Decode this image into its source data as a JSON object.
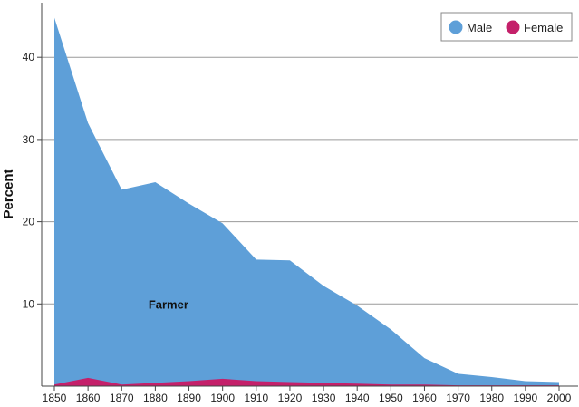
{
  "chart_data": {
    "type": "area",
    "stacked": false,
    "title": "",
    "xlabel": "",
    "ylabel": "Percent",
    "x": [
      1850,
      1860,
      1870,
      1880,
      1890,
      1900,
      1910,
      1920,
      1930,
      1940,
      1950,
      1960,
      1970,
      1980,
      1990,
      2000
    ],
    "xlim": [
      1850,
      2000
    ],
    "ylim": [
      0,
      46
    ],
    "yticks": [
      10,
      20,
      30,
      40
    ],
    "grid": "horizontal",
    "legend_position": "top-right",
    "series": [
      {
        "name": "Male",
        "color": "#5e9fd8",
        "values": [
          44.8,
          32.0,
          23.9,
          24.8,
          22.2,
          19.8,
          15.4,
          15.3,
          12.2,
          9.8,
          6.9,
          3.4,
          1.5,
          1.1,
          0.6,
          0.5
        ]
      },
      {
        "name": "Female",
        "color": "#c4206a",
        "values": [
          0.2,
          1.0,
          0.2,
          0.4,
          0.6,
          0.9,
          0.6,
          0.5,
          0.4,
          0.3,
          0.2,
          0.2,
          0.1,
          0.1,
          0.1,
          0.1
        ]
      }
    ],
    "annotations": [
      {
        "text": "Farmer",
        "x": 1875,
        "y": 10
      }
    ]
  }
}
